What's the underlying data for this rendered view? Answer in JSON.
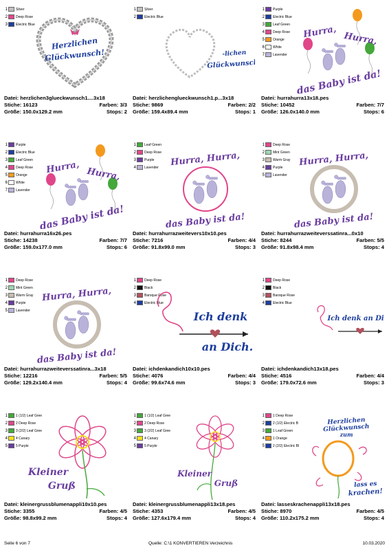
{
  "palette": {
    "Silver": "#c0c0c0",
    "Deep Rose": "#e0468a",
    "Electric Blue": "#1d3e9e",
    "Purple": "#6a3da0",
    "Leaf Green": "#44a83a",
    "Orange": "#f39a1e",
    "White": "#ffffff",
    "Lavender": "#b9b3d9",
    "Mint Green": "#9ed6b0",
    "Warm Gray": "#c7bdb1",
    "Black": "#111111",
    "Baroque Rose": "#b2505c",
    "Canary": "#f7e01e"
  },
  "cards": [
    {
      "art": "heart-wreath",
      "art_text": [
        "Herzlichen",
        "Glückwunsch!"
      ],
      "swatches": [
        {
          "n": "1",
          "name": "Silver",
          "color": "#c0c0c0"
        },
        {
          "n": "2",
          "name": "Deep Rose",
          "color": "#e0468a"
        },
        {
          "n": "3",
          "name": "Electric Blue",
          "color": "#1d3e9e"
        }
      ],
      "file": "Datei: herzlichen3glueckwunsch1....3x18",
      "stitches": "Stiche: 16123",
      "colors": "Farben: 3/3",
      "size": "Größe: 150.0x129.2 mm",
      "stops": "Stops: 2"
    },
    {
      "art": "heart-outline",
      "art_text": [
        "-lichen",
        "Glückwunsch!"
      ],
      "swatches": [
        {
          "n": "1",
          "name": "Silver",
          "color": "#c0c0c0"
        },
        {
          "n": "2",
          "name": "Electric Blue",
          "color": "#1d3e9e"
        }
      ],
      "file": "Datei: herzlichenglueckwunsch1.p...3x18",
      "stitches": "Stiche: 9869",
      "colors": "Farben: 2/2",
      "size": "Größe: 159.4x89.4 mm",
      "stops": "Stops: 1"
    },
    {
      "art": "baby-balloons",
      "art_text": [
        "Hurra,",
        "Hurra,",
        "das Baby ist da!"
      ],
      "swatches": [
        {
          "n": "1",
          "name": "Purple",
          "color": "#6a3da0"
        },
        {
          "n": "2",
          "name": "Electric Blue",
          "color": "#1d3e9e"
        },
        {
          "n": "3",
          "name": "Leaf Green",
          "color": "#44a83a"
        },
        {
          "n": "4",
          "name": "Deep Rose",
          "color": "#e0468a"
        },
        {
          "n": "5",
          "name": "Orange",
          "color": "#f39a1e"
        },
        {
          "n": "6",
          "name": "White",
          "color": "#ffffff"
        },
        {
          "n": "7",
          "name": "Lavender",
          "color": "#b9b3d9"
        }
      ],
      "file": "Datei: hurrahurra13x18.pes",
      "stitches": "Stiche: 10452",
      "colors": "Farben: 7/7",
      "size": "Größe: 126.0x140.0 mm",
      "stops": "Stops: 6"
    },
    {
      "art": "baby-balloons",
      "art_text": [
        "Hurra,",
        "Hurra,",
        "das Baby ist da!"
      ],
      "swatches": [
        {
          "n": "1",
          "name": "Purple",
          "color": "#6a3da0"
        },
        {
          "n": "2",
          "name": "Electric Blue",
          "color": "#1d3e9e"
        },
        {
          "n": "3",
          "name": "Leaf Green",
          "color": "#44a83a"
        },
        {
          "n": "4",
          "name": "Deep Rose",
          "color": "#e0468a"
        },
        {
          "n": "5",
          "name": "Orange",
          "color": "#f39a1e"
        },
        {
          "n": "6",
          "name": "White",
          "color": "#ffffff"
        },
        {
          "n": "7",
          "name": "Lavender",
          "color": "#b9b3d9"
        }
      ],
      "file": "Datei: hurrahurra16x26.pes",
      "stitches": "Stiche: 14238",
      "colors": "Farben: 7/7",
      "size": "Größe: 159.0x177.0 mm",
      "stops": "Stops: 6"
    },
    {
      "art": "baby-ring-pink",
      "art_text": [
        "Hurra, Hurra,",
        "das Baby ist da!"
      ],
      "swatches": [
        {
          "n": "1",
          "name": "Leaf Green",
          "color": "#44a83a"
        },
        {
          "n": "2",
          "name": "Deep Rose",
          "color": "#e0468a"
        },
        {
          "n": "3",
          "name": "Purple",
          "color": "#6a3da0"
        },
        {
          "n": "4",
          "name": "Lavender",
          "color": "#b9b3d9"
        }
      ],
      "file": "Datei: hurrahurrazweitevers10x10.pes",
      "stitches": "Stiche: 7216",
      "colors": "Farben: 4/4",
      "size": "Größe: 91.8x99.0 mm",
      "stops": "Stops: 3"
    },
    {
      "art": "baby-ring-satin",
      "art_text": [
        "Hurra, Hurra,",
        "das Baby ist da!"
      ],
      "swatches": [
        {
          "n": "1",
          "name": "Deep Rose",
          "color": "#e0468a"
        },
        {
          "n": "2",
          "name": "Mint Green",
          "color": "#9ed6b0"
        },
        {
          "n": "3",
          "name": "Warm Gray",
          "color": "#c7bdb1"
        },
        {
          "n": "4",
          "name": "Purple",
          "color": "#6a3da0"
        },
        {
          "n": "5",
          "name": "Lavender",
          "color": "#b9b3d9"
        }
      ],
      "file": "Datei: hurrahurrazweiteverssatinra...0x10",
      "stitches": "Stiche: 8244",
      "colors": "Farben: 5/5",
      "size": "Größe: 91.8x98.4 mm",
      "stops": "Stops: 4"
    },
    {
      "art": "baby-ring-satin",
      "art_text": [
        "Hurra, Hurra,",
        "das Baby ist da!"
      ],
      "swatches": [
        {
          "n": "1",
          "name": "Deep Rose",
          "color": "#e0468a"
        },
        {
          "n": "2",
          "name": "Mint Green",
          "color": "#9ed6b0"
        },
        {
          "n": "3",
          "name": "Warm Gray",
          "color": "#c7bdb1"
        },
        {
          "n": "4",
          "name": "Purple",
          "color": "#6a3da0"
        },
        {
          "n": "5",
          "name": "Lavender",
          "color": "#b9b3d9"
        }
      ],
      "file": "Datei: hurrahurrazweiteverssatinra...3x18",
      "stitches": "Stiche: 12216",
      "colors": "Farben: 5/5",
      "size": "Größe: 129.2x140.4 mm",
      "stops": "Stops: 4"
    },
    {
      "art": "arrow-big",
      "art_text": [
        "Ich denk",
        "an Dich."
      ],
      "swatches": [
        {
          "n": "1",
          "name": "Deep Rose",
          "color": "#e0468a"
        },
        {
          "n": "2",
          "name": "Black",
          "color": "#111111"
        },
        {
          "n": "3",
          "name": "Baroque Rose",
          "color": "#b2505c"
        },
        {
          "n": "4",
          "name": "Electric Blue",
          "color": "#1d3e9e"
        }
      ],
      "file": "Datei: ichdenkandich10x10.pes",
      "stitches": "Stiche: 4076",
      "colors": "Farben: 4/4",
      "size": "Größe: 99.6x74.6 mm",
      "stops": "Stops: 3"
    },
    {
      "art": "arrow-small",
      "art_text": [
        "Ich denk an Dich."
      ],
      "swatches": [
        {
          "n": "1",
          "name": "Deep Rose",
          "color": "#e0468a"
        },
        {
          "n": "2",
          "name": "Black",
          "color": "#111111"
        },
        {
          "n": "3",
          "name": "Baroque Rose",
          "color": "#b2505c"
        },
        {
          "n": "4",
          "name": "Electric Blue",
          "color": "#1d3e9e"
        }
      ],
      "file": "Datei: ichdenkandich13x18.pes",
      "stitches": "Stiche: 4516",
      "colors": "Farben: 4/4",
      "size": "Größe: 179.0x72.6 mm",
      "stops": "Stops: 3"
    },
    {
      "art": "flower-big",
      "art_text": [
        "Kleiner",
        "Gruß"
      ],
      "swatches": [
        {
          "n": "1",
          "name": "(1/2) Leaf Gree",
          "color": "#44a83a"
        },
        {
          "n": "2",
          "name": "Deep Rose",
          "color": "#e0468a"
        },
        {
          "n": "3",
          "name": "(2/2) Leaf Gree",
          "color": "#44a83a"
        },
        {
          "n": "4",
          "name": "Canary",
          "color": "#f7e01e"
        },
        {
          "n": "5",
          "name": "Purple",
          "color": "#6a3da0"
        }
      ],
      "swatch_prefix": [
        "1",
        "2",
        "3",
        "4",
        "5"
      ],
      "file": "Datei: kleinergrussblumenappli10x10.pes",
      "stitches": "Stiche: 3355",
      "colors": "Farben: 4/5",
      "size": "Größe: 98.8x99.2 mm",
      "stops": "Stops: 4"
    },
    {
      "art": "flower-small",
      "art_text": [
        "Kleiner",
        "Gruß"
      ],
      "swatches": [
        {
          "n": "1",
          "name": "(1/2) Leaf Gree",
          "color": "#44a83a"
        },
        {
          "n": "2",
          "name": "Deep Rose",
          "color": "#e0468a"
        },
        {
          "n": "3",
          "name": "(2/2) Leaf Gree",
          "color": "#44a83a"
        },
        {
          "n": "4",
          "name": "Canary",
          "color": "#f7e01e"
        },
        {
          "n": "5",
          "name": "Purple",
          "color": "#6a3da0"
        }
      ],
      "swatch_prefix": [
        "1",
        "2",
        "3",
        "4",
        "5"
      ],
      "file": "Datei: kleinergrussblumenappli13x18.pes",
      "stitches": "Stiche: 4353",
      "colors": "Farben: 4/5",
      "size": "Größe: 127.6x179.4 mm",
      "stops": "Stops: 4"
    },
    {
      "art": "balloon-swirl",
      "art_text": [
        "Herzlichen",
        "Glückwunsch",
        "zum",
        "lass es",
        "krachen!"
      ],
      "swatches": [
        {
          "n": "1",
          "name": "Deep Rose",
          "color": "#e0468a"
        },
        {
          "n": "2",
          "name": "(1/2) Electric B",
          "color": "#1d3e9e"
        },
        {
          "n": "3",
          "name": "Leaf Green",
          "color": "#44a83a"
        },
        {
          "n": "4",
          "name": "Orange",
          "color": "#f39a1e"
        },
        {
          "n": "5",
          "name": "(2/2) Electric Bl",
          "color": "#1d3e9e"
        }
      ],
      "swatch_prefix": [
        "1",
        "2",
        "1",
        "1",
        "2"
      ],
      "file": "Datei: lasseskrachenappli13x18.pes",
      "stitches": "Stiche: 8970",
      "colors": "Farben: 4/5",
      "size": "Größe: 110.2x175.2 mm",
      "stops": "Stops: 4"
    }
  ],
  "footer": {
    "page": "Seite 6 von 7",
    "source": "Quelle: C:\\1 KONVERTIEREN Verzeichnis",
    "date": "10.03.2020"
  }
}
